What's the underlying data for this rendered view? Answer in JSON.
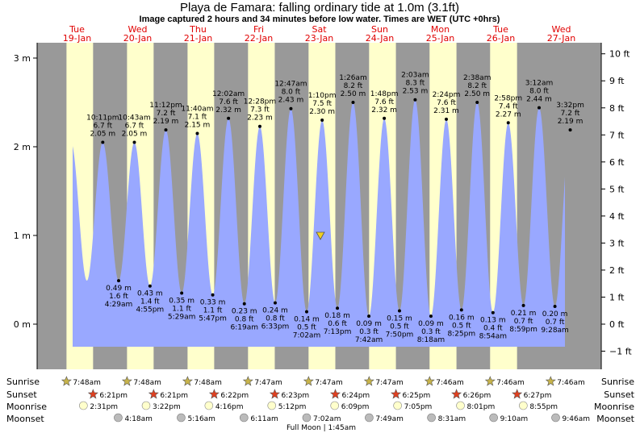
{
  "title": "Playa de Famara: falling  ordinary tide at 1.0m (3.1ft)",
  "subtitle": "Image captured 2 hours and 34 minutes before low water. Times are WET (UTC +0hrs)",
  "colors": {
    "night": "#999999",
    "day": "#ffffcc",
    "tide": "#99a8ff",
    "title": "#000000",
    "day_label": "#e00000",
    "sunrise_star": "#c8b44a",
    "sunset_star": "#e04020",
    "moonrise": "#ffffcc",
    "moonset": "#bbbbbb",
    "marker": "#f0d020"
  },
  "chart_data": {
    "type": "area",
    "ylabel_left": "m",
    "ylabel_right": "ft",
    "ylim_m": [
      -0.45,
      3.15
    ],
    "yticks_m": [
      "3 m",
      "2 m",
      "1 m",
      "0 m"
    ],
    "yticks_ft": [
      "10 ft",
      "9 ft",
      "8 ft",
      "7 ft",
      "6 ft",
      "5 ft",
      "4 ft",
      "3 ft",
      "2 ft",
      "1 ft",
      "0 ft",
      "−1 ft"
    ],
    "days": [
      {
        "dow": "Tue",
        "date": "19-Jan"
      },
      {
        "dow": "Wed",
        "date": "20-Jan"
      },
      {
        "dow": "Thu",
        "date": "21-Jan"
      },
      {
        "dow": "Fri",
        "date": "22-Jan"
      },
      {
        "dow": "Sat",
        "date": "23-Jan"
      },
      {
        "dow": "Sun",
        "date": "24-Jan"
      },
      {
        "dow": "Mon",
        "date": "25-Jan"
      },
      {
        "dow": "Tue",
        "date": "26-Jan"
      },
      {
        "dow": "Wed",
        "date": "27-Jan"
      }
    ],
    "tides": [
      {
        "type": "high",
        "time": "10:11 pm",
        "ft": "6.7 ft",
        "m": 2.05,
        "m_label": "2.05 m"
      },
      {
        "type": "low",
        "time": "4:29 am",
        "ft": "1.6 ft",
        "m": 0.49,
        "m_label": "0.49 m"
      },
      {
        "type": "high",
        "time": "10:43 am",
        "ft": "6.7 ft",
        "m": 2.05,
        "m_label": "2.05 m"
      },
      {
        "type": "low",
        "time": "4:55 pm",
        "ft": "1.4 ft",
        "m": 0.43,
        "m_label": "0.43 m"
      },
      {
        "type": "high",
        "time": "11:12 pm",
        "ft": "7.2 ft",
        "m": 2.19,
        "m_label": "2.19 m"
      },
      {
        "type": "low",
        "time": "5:29 am",
        "ft": "1.1 ft",
        "m": 0.35,
        "m_label": "0.35 m"
      },
      {
        "type": "high",
        "time": "11:40 am",
        "ft": "7.1 ft",
        "m": 2.15,
        "m_label": "2.15 m"
      },
      {
        "type": "low",
        "time": "5:47 pm",
        "ft": "1.1 ft",
        "m": 0.33,
        "m_label": "0.33 m"
      },
      {
        "type": "high",
        "time": "12:02 am",
        "ft": "7.6 ft",
        "m": 2.32,
        "m_label": "2.32 m"
      },
      {
        "type": "low",
        "time": "6:19 am",
        "ft": "0.8 ft",
        "m": 0.23,
        "m_label": "0.23 m"
      },
      {
        "type": "high",
        "time": "12:28 pm",
        "ft": "7.3 ft",
        "m": 2.23,
        "m_label": "2.23 m"
      },
      {
        "type": "low",
        "time": "6:33 pm",
        "ft": "0.8 ft",
        "m": 0.24,
        "m_label": "0.24 m"
      },
      {
        "type": "high",
        "time": "12:47 am",
        "ft": "8.0 ft",
        "m": 2.43,
        "m_label": "2.43 m"
      },
      {
        "type": "low",
        "time": "7:02 am",
        "ft": "0.5 ft",
        "m": 0.14,
        "m_label": "0.14 m"
      },
      {
        "type": "high",
        "time": "1:10 pm",
        "ft": "7.5 ft",
        "m": 2.3,
        "m_label": "2.30 m"
      },
      {
        "type": "low",
        "time": "7:13 pm",
        "ft": "0.6 ft",
        "m": 0.18,
        "m_label": "0.18 m"
      },
      {
        "type": "high",
        "time": "1:26 am",
        "ft": "8.2 ft",
        "m": 2.5,
        "m_label": "2.50 m"
      },
      {
        "type": "low",
        "time": "7:42 am",
        "ft": "0.3 ft",
        "m": 0.09,
        "m_label": "0.09 m"
      },
      {
        "type": "high",
        "time": "1:48 pm",
        "ft": "7.6 ft",
        "m": 2.32,
        "m_label": "2.32 m"
      },
      {
        "type": "low",
        "time": "7:50 pm",
        "ft": "0.5 ft",
        "m": 0.15,
        "m_label": "0.15 m"
      },
      {
        "type": "high",
        "time": "2:03 am",
        "ft": "8.3 ft",
        "m": 2.53,
        "m_label": "2.53 m"
      },
      {
        "type": "low",
        "time": "8:18 am",
        "ft": "0.3 ft",
        "m": 0.09,
        "m_label": "0.09 m"
      },
      {
        "type": "high",
        "time": "2:24 pm",
        "ft": "7.6 ft",
        "m": 2.31,
        "m_label": "2.31 m"
      },
      {
        "type": "low",
        "time": "8:25 pm",
        "ft": "0.5 ft",
        "m": 0.16,
        "m_label": "0.16 m"
      },
      {
        "type": "high",
        "time": "2:38 am",
        "ft": "8.2 ft",
        "m": 2.5,
        "m_label": "2.50 m"
      },
      {
        "type": "low",
        "time": "8:54 am",
        "ft": "0.4 ft",
        "m": 0.13,
        "m_label": "0.13 m"
      },
      {
        "type": "high",
        "time": "2:58 pm",
        "ft": "7.4 ft",
        "m": 2.27,
        "m_label": "2.27 m"
      },
      {
        "type": "low",
        "time": "8:59 pm",
        "ft": "0.7 ft",
        "m": 0.21,
        "m_label": "0.21 m"
      },
      {
        "type": "high",
        "time": "3:12 am",
        "ft": "8.0 ft",
        "m": 2.44,
        "m_label": "2.44 m"
      },
      {
        "type": "low",
        "time": "9:28 am",
        "ft": "0.7 ft",
        "m": 0.2,
        "m_label": "0.20 m"
      },
      {
        "type": "high",
        "time": "3:32 pm",
        "ft": "7.2 ft",
        "m": 2.19,
        "m_label": "2.19 m"
      }
    ],
    "current": {
      "m": 1.0,
      "label": "falling  ordinary tide at 1.0m (3.1ft)"
    },
    "rows": {
      "sunrise_label": "Sunrise",
      "sunset_label": "Sunset",
      "moonrise_label": "Moonrise",
      "moonset_label": "Moonset"
    },
    "sunrise": [
      "7:48am",
      "7:48am",
      "7:48am",
      "7:47am",
      "7:47am",
      "7:47am",
      "7:46am",
      "7:46am",
      "7:46am"
    ],
    "sunset": [
      "6:21pm",
      "6:21pm",
      "6:22pm",
      "6:23pm",
      "6:24pm",
      "6:25pm",
      "6:26pm",
      "6:27pm"
    ],
    "moonrise": [
      "2:31pm",
      "3:22pm",
      "4:16pm",
      "5:12pm",
      "6:09pm",
      "7:05pm",
      "8:01pm",
      "8:55pm"
    ],
    "moonset": [
      "4:18am",
      "5:16am",
      "6:11am",
      "7:02am",
      "7:49am",
      "8:31am",
      "9:10am",
      "9:46am"
    ],
    "footer": "Full Moon | 1:45am"
  }
}
